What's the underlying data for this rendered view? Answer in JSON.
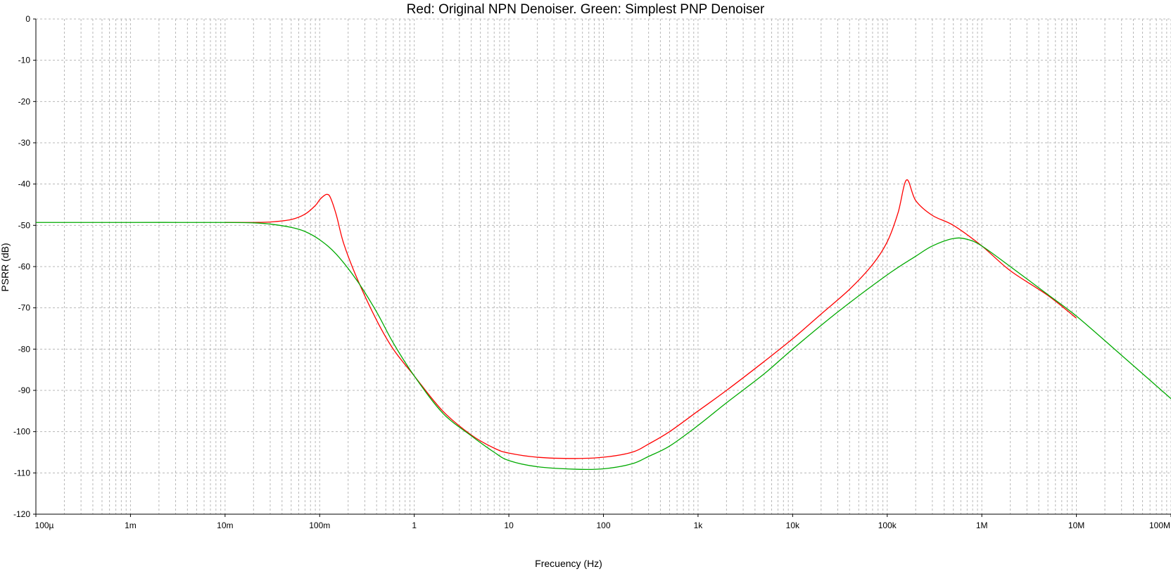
{
  "chart_data": {
    "type": "line",
    "title": "Red: Original NPN Denoiser. Green: Simplest PNP Denoiser",
    "xlabel": "Frecuency (Hz)",
    "ylabel": "PSRR (dB)",
    "x_scale": "log",
    "xlim": [
      0.0001,
      100000000
    ],
    "ylim": [
      -120,
      0
    ],
    "grid": true,
    "x_tick_values": [
      0.0001,
      0.001,
      0.01,
      0.1,
      1,
      10,
      100,
      1000,
      10000,
      100000,
      1000000,
      10000000,
      100000000
    ],
    "x_tick_labels": [
      "100µ",
      "1m",
      "10m",
      "100m",
      "1",
      "10",
      "100",
      "1k",
      "10k",
      "100k",
      "1M",
      "10M",
      "100M"
    ],
    "y_tick_values": [
      0,
      -10,
      -20,
      -30,
      -40,
      -50,
      -60,
      -70,
      -80,
      -90,
      -100,
      -110,
      -120
    ],
    "y_tick_labels": [
      "0",
      "-10",
      "-20",
      "-30",
      "-40",
      "-50",
      "-60",
      "-70",
      "-80",
      "-90",
      "-100",
      "-110",
      "-120"
    ],
    "series": [
      {
        "color": "#ff0000",
        "x": [
          0.01,
          0.02,
          0.03,
          0.05,
          0.07,
          0.09,
          0.1,
          0.11,
          0.12,
          0.13,
          0.15,
          0.18,
          0.25,
          0.4,
          0.6,
          1,
          2,
          4,
          7,
          10,
          20,
          50,
          100,
          200,
          300,
          500,
          1000,
          2000,
          5000,
          10000,
          20000,
          40000,
          70000,
          100000,
          130000,
          160000,
          200000,
          300000,
          500000,
          1000000,
          2000000,
          5000000,
          10000000
        ],
        "y": [
          -49.3,
          -49.3,
          -49.2,
          -48.6,
          -47.3,
          -45.2,
          -43.8,
          -42.9,
          -42.5,
          -43.3,
          -47.5,
          -54.5,
          -63.0,
          -73.0,
          -80.0,
          -86.5,
          -95.0,
          -100.8,
          -104.0,
          -105.2,
          -106.2,
          -106.5,
          -106.2,
          -105.0,
          -103.0,
          -100.0,
          -95.0,
          -90.0,
          -83.0,
          -77.5,
          -71.5,
          -65.5,
          -59.5,
          -54.0,
          -47.0,
          -39.0,
          -44.0,
          -47.6,
          -50.0,
          -55.0,
          -61.0,
          -67.0,
          -72.5
        ]
      },
      {
        "color": "#00aa00",
        "x": [
          0.0001,
          0.001,
          0.01,
          0.02,
          0.03,
          0.05,
          0.07,
          0.1,
          0.15,
          0.25,
          0.4,
          0.6,
          1,
          2,
          4,
          7,
          10,
          20,
          50,
          100,
          200,
          300,
          500,
          1000,
          2000,
          5000,
          10000,
          30000,
          100000,
          200000,
          300000,
          500000,
          700000,
          1000000,
          2000000,
          5000000,
          10000000,
          30000000,
          100000000
        ],
        "y": [
          -49.3,
          -49.3,
          -49.3,
          -49.4,
          -49.7,
          -50.5,
          -51.5,
          -53.5,
          -57.0,
          -63.5,
          -71.0,
          -78.5,
          -86.5,
          -95.5,
          -101.0,
          -105.0,
          -107.0,
          -108.5,
          -109.1,
          -109.0,
          -107.8,
          -106.0,
          -103.5,
          -98.5,
          -93.0,
          -86.0,
          -80.0,
          -71.0,
          -62.0,
          -57.5,
          -55.0,
          -53.2,
          -53.4,
          -55.0,
          -60.0,
          -66.8,
          -72.0,
          -81.5,
          -92.0
        ]
      }
    ]
  }
}
